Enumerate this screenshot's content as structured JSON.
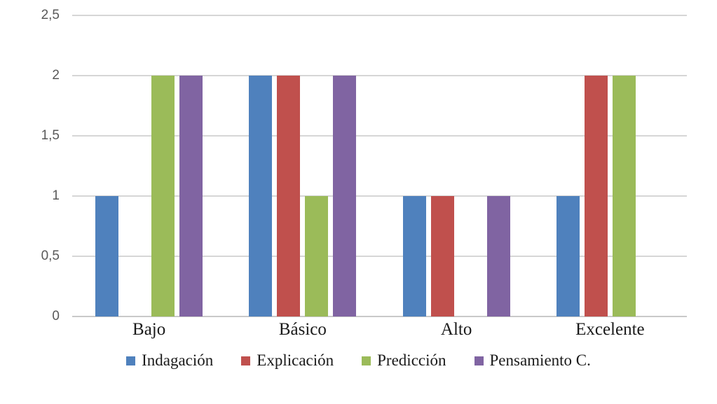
{
  "chart_data": {
    "type": "bar",
    "title": "",
    "xlabel": "",
    "ylabel": "",
    "categories": [
      "Bajo",
      "Básico",
      "Alto",
      "Excelente"
    ],
    "series": [
      {
        "name": "Indagación",
        "color": "#4F81BD",
        "values": [
          1,
          2,
          1,
          1
        ]
      },
      {
        "name": "Explicación",
        "color": "#C0504D",
        "values": [
          0,
          2,
          1,
          2
        ]
      },
      {
        "name": "Predicción",
        "color": "#9BBB59",
        "values": [
          2,
          1,
          0,
          2
        ]
      },
      {
        "name": "Pensamiento C.",
        "color": "#8064A2",
        "values": [
          2,
          2,
          1,
          0
        ]
      }
    ],
    "ylim": [
      0,
      2.5
    ],
    "ytick_interval": 0.5,
    "ytick_labels": [
      "0",
      "0,5",
      "1",
      "1,5",
      "2",
      "2,5"
    ],
    "grid": true,
    "legend_position": "bottom"
  },
  "styles": {
    "background": "#ffffff",
    "grid_color": "#d6d6d6",
    "axis_line_color": "#c9c9c9",
    "tick_label_color": "#595959",
    "text_color": "#1a1a1a"
  }
}
